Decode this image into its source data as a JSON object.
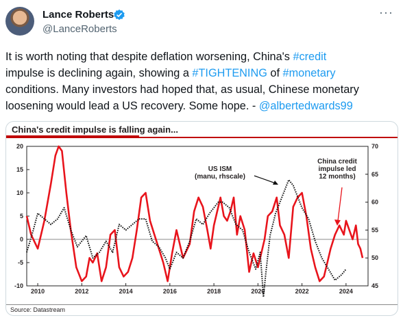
{
  "author": {
    "name": "Lance Roberts",
    "handle": "@LanceRoberts",
    "verified_color": "#1d9bf0",
    "icons": {
      "verified": "verified-badge-icon",
      "more": "more-options-icon"
    }
  },
  "more_label": "···",
  "tweet": {
    "p1": "It is worth noting that despite deflation worsening, China's ",
    "tag1": "#credit",
    "p2": "impulse is declining again, showing a ",
    "tag2": "#TIGHTENING",
    "p3": " of ",
    "tag3": "#monetary",
    "p4": "conditions. Many investors had hoped that, as usual, Chinese monetary",
    "p5": "loosening would lead a US recovery. Some hope. - ",
    "mention": "@albertedwards99",
    "link_color": "#1d9bf0"
  },
  "chart_data": {
    "type": "line",
    "title": "China's credit impulse is falling again...",
    "source": "Source: Datastream",
    "x_ticks": [
      "2010",
      "2012",
      "2014",
      "2016",
      "2018",
      "2020",
      "2022",
      "2024"
    ],
    "y_left_ticks": [
      "20",
      "15",
      "10",
      "5",
      "0",
      "-5",
      "-10"
    ],
    "y_right_ticks": [
      "70",
      "65",
      "60",
      "55",
      "50",
      "45"
    ],
    "ylim_left": [
      -10,
      20
    ],
    "ylim_right": [
      45,
      70
    ],
    "xlim": [
      2009.5,
      2025
    ],
    "annotations": {
      "ism": "US ISM\n(manu, rhscale)",
      "china": "China credit\nimpulse led\n12 months)"
    },
    "colors": {
      "china": "#e8141c",
      "ism": "#111111",
      "accent": "#c00000"
    },
    "series": [
      {
        "name": "China credit",
        "axis": "left",
        "x": [
          2009.5,
          2009.7,
          2010.0,
          2010.3,
          2010.6,
          2010.8,
          2010.95,
          2011.1,
          2011.3,
          2011.5,
          2011.75,
          2012.0,
          2012.2,
          2012.35,
          2012.5,
          2012.7,
          2012.9,
          2013.1,
          2013.3,
          2013.5,
          2013.7,
          2013.9,
          2014.1,
          2014.3,
          2014.5,
          2014.7,
          2014.9,
          2015.1,
          2015.3,
          2015.5,
          2015.7,
          2015.9,
          2016.1,
          2016.3,
          2016.6,
          2016.9,
          2017.1,
          2017.3,
          2017.5,
          2017.7,
          2017.85,
          2018.0,
          2018.15,
          2018.3,
          2018.45,
          2018.6,
          2018.75,
          2018.9,
          2019.05,
          2019.2,
          2019.4,
          2019.6,
          2019.8,
          2020.0,
          2020.15,
          2020.3,
          2020.45,
          2020.65,
          2020.85,
          2021.0,
          2021.2,
          2021.4,
          2021.6,
          2021.8,
          2022.0,
          2022.2,
          2022.4,
          2022.6,
          2022.8,
          2023.0,
          2023.15,
          2023.3,
          2023.5,
          2023.7,
          2023.9,
          2024.0,
          2024.15,
          2024.3,
          2024.45,
          2024.55,
          2024.65,
          2024.75
        ],
        "y": [
          5,
          1,
          -2,
          4,
          12,
          18,
          20,
          19,
          10,
          2,
          -6,
          -9,
          -8,
          -4,
          -5,
          -3,
          -9,
          -6,
          1,
          2,
          -6,
          -8,
          -7,
          -4,
          2,
          9,
          10,
          4,
          1,
          -2,
          -5,
          -9,
          -3,
          2,
          -4,
          -1,
          6,
          9,
          7,
          2,
          -2,
          3,
          6,
          9,
          5,
          4,
          6,
          9,
          1,
          5,
          2,
          -7,
          -3,
          -6,
          -3,
          0,
          5,
          6,
          9,
          3,
          1,
          -4,
          7,
          9,
          10,
          5,
          -2,
          -6,
          -9,
          -8,
          -5,
          -2,
          1,
          3,
          1,
          4,
          2,
          0,
          3,
          -1,
          -2,
          -4
        ]
      },
      {
        "name": "US ISM",
        "axis": "right",
        "x": [
          2009.5,
          2009.8,
          2010.0,
          2010.3,
          2010.6,
          2010.9,
          2011.2,
          2011.5,
          2011.8,
          2012.0,
          2012.2,
          2012.5,
          2012.8,
          2013.1,
          2013.4,
          2013.7,
          2014.0,
          2014.3,
          2014.6,
          2014.9,
          2015.2,
          2015.5,
          2015.8,
          2016.0,
          2016.3,
          2016.6,
          2016.9,
          2017.2,
          2017.5,
          2017.8,
          2018.0,
          2018.2,
          2018.4,
          2018.7,
          2019.0,
          2019.3,
          2019.6,
          2019.9,
          2020.1,
          2020.25,
          2020.35,
          2020.55,
          2020.8,
          2021.0,
          2021.2,
          2021.4,
          2021.6,
          2021.8,
          2022.0,
          2022.3,
          2022.6,
          2022.9,
          2023.2,
          2023.5,
          2023.8,
          2024.0
        ],
        "y": [
          51,
          55,
          58,
          57,
          56,
          57,
          59,
          55,
          52,
          53,
          54,
          50,
          51,
          53,
          51,
          56,
          55,
          56,
          57,
          57,
          53,
          52,
          50,
          48,
          51,
          50,
          53,
          57,
          56,
          58,
          59,
          60,
          60,
          59,
          56,
          55,
          51,
          48,
          51,
          43,
          47,
          54,
          58,
          60,
          62,
          64,
          63,
          61,
          59,
          57,
          53,
          50,
          48,
          46,
          47,
          48
        ]
      }
    ]
  }
}
